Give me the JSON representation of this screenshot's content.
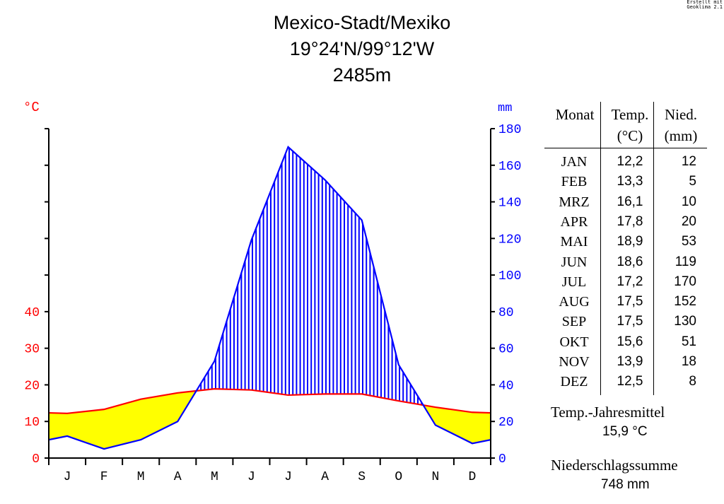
{
  "credit": [
    "Erstellt mit",
    "Geoklima 2.1"
  ],
  "title": "Mexico-Stadt/Mexiko",
  "coordinates": "19°24'N/99°12'W",
  "elevation": "2485m",
  "colors": {
    "temperature": "#ff0000",
    "precipitation": "#0000ff",
    "arid": "#ffff00"
  },
  "chart_data": {
    "type": "line",
    "categories": [
      "J",
      "F",
      "M",
      "A",
      "M",
      "J",
      "J",
      "A",
      "S",
      "O",
      "N",
      "D"
    ],
    "series": [
      {
        "name": "Temp.",
        "values": [
          12.2,
          13.3,
          16.1,
          17.8,
          18.9,
          18.6,
          17.2,
          17.5,
          17.5,
          15.6,
          13.9,
          12.5
        ]
      },
      {
        "name": "Nied.",
        "values": [
          12,
          5,
          10,
          20,
          53,
          119,
          170,
          152,
          130,
          51,
          18,
          8
        ]
      }
    ],
    "left_axis": {
      "unit": "°C",
      "ticks": [
        0,
        10,
        20,
        30,
        40
      ],
      "ylim": [
        0,
        90
      ]
    },
    "right_axis": {
      "unit": "mm",
      "ticks": [
        0,
        20,
        40,
        60,
        80,
        100,
        120,
        140,
        160,
        180
      ],
      "ylim": [
        0,
        180
      ]
    }
  },
  "table": {
    "headers": {
      "month": "Monat",
      "temp": "Temp.",
      "temp_unit": "(°C)",
      "precip": "Nied.",
      "precip_unit": "(mm)"
    },
    "rows": [
      {
        "month": "JAN",
        "temp": "12,2",
        "precip": "12"
      },
      {
        "month": "FEB",
        "temp": "13,3",
        "precip": "5"
      },
      {
        "month": "MRZ",
        "temp": "16,1",
        "precip": "10"
      },
      {
        "month": "APR",
        "temp": "17,8",
        "precip": "20"
      },
      {
        "month": "MAI",
        "temp": "18,9",
        "precip": "53"
      },
      {
        "month": "JUN",
        "temp": "18,6",
        "precip": "119"
      },
      {
        "month": "JUL",
        "temp": "17,2",
        "precip": "170"
      },
      {
        "month": "AUG",
        "temp": "17,5",
        "precip": "152"
      },
      {
        "month": "SEP",
        "temp": "17,5",
        "precip": "130"
      },
      {
        "month": "OKT",
        "temp": "15,6",
        "precip": "51"
      },
      {
        "month": "NOV",
        "temp": "13,9",
        "precip": "18"
      },
      {
        "month": "DEZ",
        "temp": "12,5",
        "precip": "8"
      }
    ]
  },
  "summary": {
    "temp_label": "Temp.-Jahresmittel",
    "temp_value": "15,9 °C",
    "precip_label": "Niederschlagssumme",
    "precip_value": "748 mm"
  }
}
